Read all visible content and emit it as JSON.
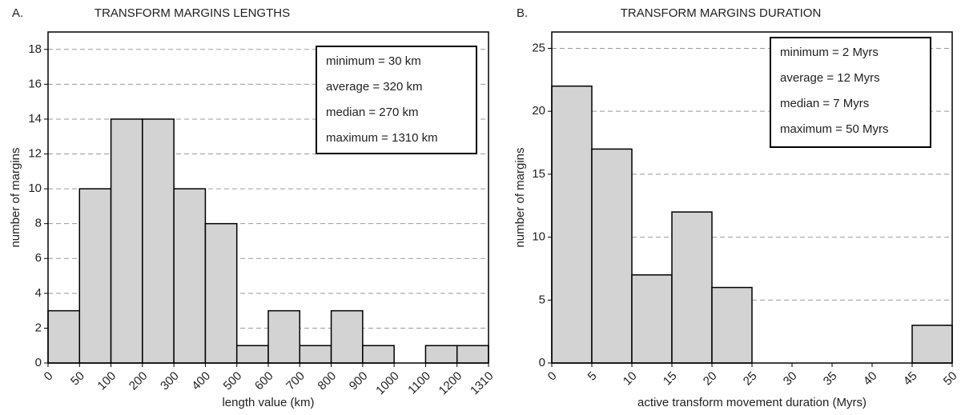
{
  "chart_data": [
    {
      "type": "histogram",
      "panel_label": "A.",
      "title": "TRANSFORM MARGINS LENGTHS",
      "xlabel": "length value (km)",
      "ylabel": "number of margins",
      "bins": [
        0,
        50,
        100,
        200,
        300,
        400,
        500,
        600,
        700,
        800,
        900,
        1000,
        1100,
        1200,
        1310
      ],
      "values": [
        3,
        10,
        14,
        14,
        10,
        8,
        1,
        3,
        1,
        3,
        1,
        0,
        1,
        1
      ],
      "color": "#d3d3d3",
      "ylim": [
        0,
        19
      ],
      "yticks": [
        0,
        2,
        4,
        6,
        8,
        10,
        12,
        14,
        16,
        18
      ],
      "grid": true,
      "annotations": [
        "minimum = 30 km",
        "average = 320 km",
        "median = 270 km",
        "maximum = 1310 km"
      ]
    },
    {
      "type": "histogram",
      "panel_label": "B.",
      "title": "TRANSFORM MARGINS DURATION",
      "xlabel": "active transform movement duration (Myrs)",
      "ylabel": "number of margins",
      "bins": [
        0,
        5,
        10,
        15,
        20,
        25,
        30,
        35,
        40,
        45,
        50
      ],
      "values": [
        22,
        17,
        7,
        12,
        6,
        0,
        0,
        0,
        0,
        3
      ],
      "color": "#d3d3d3",
      "ylim": [
        0,
        26.3
      ],
      "yticks": [
        0,
        5,
        10,
        15,
        20,
        25
      ],
      "grid": true,
      "annotations": [
        "minimum = 2 Myrs",
        "average = 12 Myrs",
        "median = 7 Myrs",
        "maximum = 50 Myrs"
      ]
    }
  ]
}
